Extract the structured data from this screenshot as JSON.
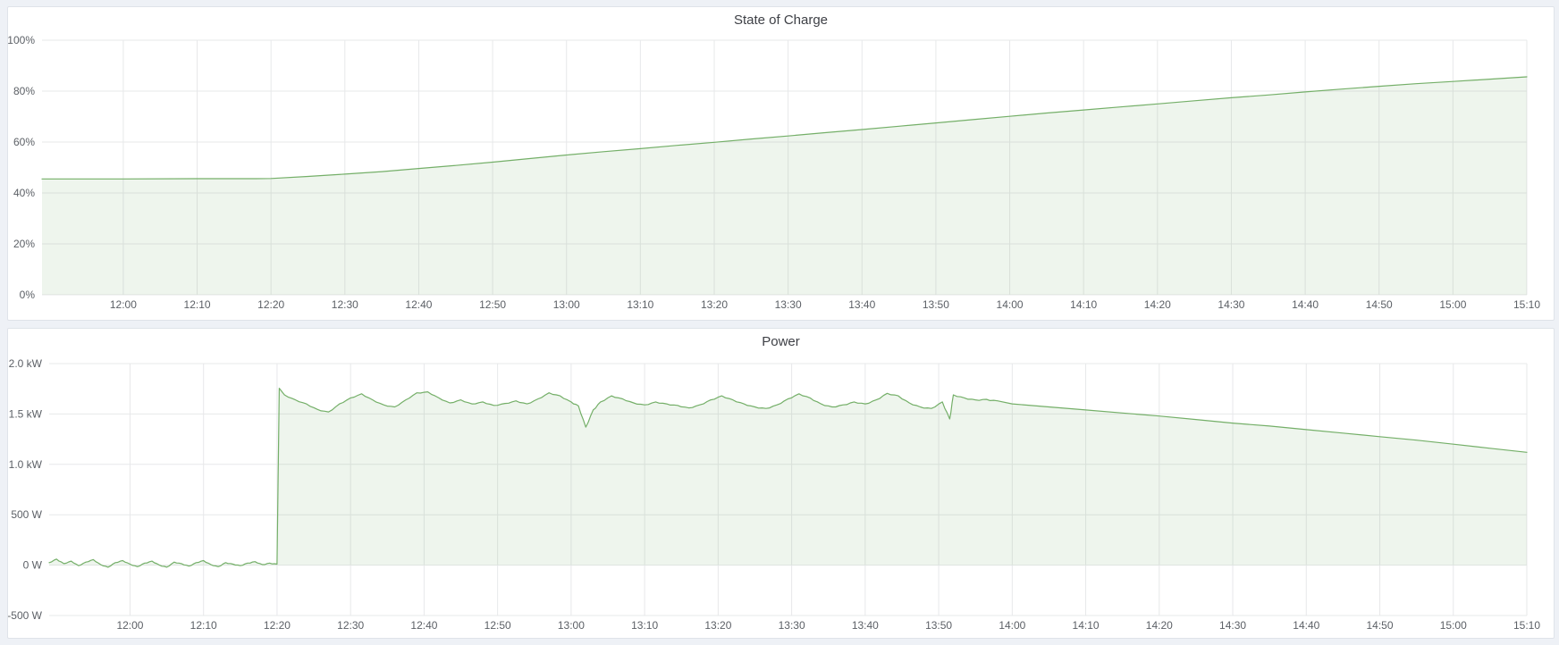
{
  "page": {
    "background": "#eef1f6",
    "panel_background": "#ffffff",
    "panel_border": "#dfe3e9",
    "gridline_color": "#e7e8ea",
    "tick_label_color": "#5c6066",
    "title_color": "#3e4046"
  },
  "panels": [
    {
      "title": "State of Charge"
    },
    {
      "title": "Power"
    }
  ],
  "chart_data": [
    {
      "type": "area",
      "title": "State of Charge",
      "xlabel": "time",
      "ylabel": "",
      "xlim": [
        709,
        910
      ],
      "ylim": [
        0,
        100
      ],
      "grid": true,
      "legend": "none",
      "line_color": "#74af68",
      "fill_color": "rgba(116,175,104,0.12)",
      "fill_base": 0,
      "y_ticks": [
        {
          "v": 0,
          "label": "0%"
        },
        {
          "v": 20,
          "label": "20%"
        },
        {
          "v": 40,
          "label": "40%"
        },
        {
          "v": 60,
          "label": "60%"
        },
        {
          "v": 80,
          "label": "80%"
        },
        {
          "v": 100,
          "label": "100%"
        }
      ],
      "x_ticks": [
        {
          "t": 720,
          "label": "12:00"
        },
        {
          "t": 730,
          "label": "12:10"
        },
        {
          "t": 740,
          "label": "12:20"
        },
        {
          "t": 750,
          "label": "12:30"
        },
        {
          "t": 760,
          "label": "12:40"
        },
        {
          "t": 770,
          "label": "12:50"
        },
        {
          "t": 780,
          "label": "13:00"
        },
        {
          "t": 790,
          "label": "13:10"
        },
        {
          "t": 800,
          "label": "13:20"
        },
        {
          "t": 810,
          "label": "13:30"
        },
        {
          "t": 820,
          "label": "13:40"
        },
        {
          "t": 830,
          "label": "13:50"
        },
        {
          "t": 840,
          "label": "14:00"
        },
        {
          "t": 850,
          "label": "14:10"
        },
        {
          "t": 860,
          "label": "14:20"
        },
        {
          "t": 870,
          "label": "14:30"
        },
        {
          "t": 880,
          "label": "14:40"
        },
        {
          "t": 890,
          "label": "14:50"
        },
        {
          "t": 900,
          "label": "15:00"
        },
        {
          "t": 910,
          "label": "15:10"
        }
      ],
      "points": [
        [
          709,
          45.5
        ],
        [
          720,
          45.5
        ],
        [
          730,
          45.6
        ],
        [
          738,
          45.6
        ],
        [
          740,
          45.7
        ],
        [
          745,
          46.5
        ],
        [
          750,
          47.4
        ],
        [
          755,
          48.4
        ],
        [
          760,
          49.6
        ],
        [
          765,
          50.8
        ],
        [
          770,
          52.1
        ],
        [
          775,
          53.5
        ],
        [
          780,
          54.9
        ],
        [
          785,
          56.2
        ],
        [
          790,
          57.4
        ],
        [
          795,
          58.7
        ],
        [
          800,
          59.9
        ],
        [
          805,
          61.2
        ],
        [
          810,
          62.4
        ],
        [
          815,
          63.7
        ],
        [
          820,
          64.9
        ],
        [
          825,
          66.2
        ],
        [
          830,
          67.5
        ],
        [
          835,
          68.8
        ],
        [
          840,
          70.1
        ],
        [
          845,
          71.4
        ],
        [
          850,
          72.6
        ],
        [
          855,
          73.8
        ],
        [
          860,
          75.0
        ],
        [
          865,
          76.2
        ],
        [
          870,
          77.4
        ],
        [
          875,
          78.5
        ],
        [
          880,
          79.7
        ],
        [
          885,
          80.8
        ],
        [
          890,
          81.9
        ],
        [
          895,
          82.9
        ],
        [
          900,
          83.8
        ],
        [
          905,
          84.7
        ],
        [
          910,
          85.6
        ]
      ],
      "noise": null
    },
    {
      "type": "area",
      "title": "Power",
      "xlabel": "time",
      "ylabel": "",
      "xlim": [
        709,
        910
      ],
      "ylim": [
        -500,
        2000
      ],
      "grid": true,
      "legend": "none",
      "line_color": "#74af68",
      "fill_color": "rgba(116,175,104,0.12)",
      "fill_base": 0,
      "y_ticks": [
        {
          "v": -500,
          "label": "-500 W"
        },
        {
          "v": 0,
          "label": "0 W"
        },
        {
          "v": 500,
          "label": "500 W"
        },
        {
          "v": 1000,
          "label": "1.0 kW"
        },
        {
          "v": 1500,
          "label": "1.5 kW"
        },
        {
          "v": 2000,
          "label": "2.0 kW"
        }
      ],
      "x_ticks": [
        {
          "t": 720,
          "label": "12:00"
        },
        {
          "t": 730,
          "label": "12:10"
        },
        {
          "t": 740,
          "label": "12:20"
        },
        {
          "t": 750,
          "label": "12:30"
        },
        {
          "t": 760,
          "label": "12:40"
        },
        {
          "t": 770,
          "label": "12:50"
        },
        {
          "t": 780,
          "label": "13:00"
        },
        {
          "t": 790,
          "label": "13:10"
        },
        {
          "t": 800,
          "label": "13:20"
        },
        {
          "t": 810,
          "label": "13:30"
        },
        {
          "t": 820,
          "label": "13:40"
        },
        {
          "t": 830,
          "label": "13:50"
        },
        {
          "t": 840,
          "label": "14:00"
        },
        {
          "t": 850,
          "label": "14:10"
        },
        {
          "t": 860,
          "label": "14:20"
        },
        {
          "t": 870,
          "label": "14:30"
        },
        {
          "t": 880,
          "label": "14:40"
        },
        {
          "t": 890,
          "label": "14:50"
        },
        {
          "t": 900,
          "label": "15:00"
        },
        {
          "t": 910,
          "label": "15:10"
        }
      ],
      "points": [
        [
          709,
          25
        ],
        [
          710,
          60
        ],
        [
          711,
          15
        ],
        [
          712,
          40
        ],
        [
          713,
          -5
        ],
        [
          714,
          30
        ],
        [
          715,
          55
        ],
        [
          716,
          5
        ],
        [
          717,
          -20
        ],
        [
          718,
          25
        ],
        [
          719,
          45
        ],
        [
          720,
          10
        ],
        [
          721,
          -15
        ],
        [
          722,
          20
        ],
        [
          723,
          40
        ],
        [
          724,
          0
        ],
        [
          725,
          -20
        ],
        [
          726,
          30
        ],
        [
          727,
          15
        ],
        [
          728,
          -10
        ],
        [
          729,
          25
        ],
        [
          730,
          45
        ],
        [
          731,
          5
        ],
        [
          732,
          -15
        ],
        [
          733,
          25
        ],
        [
          734,
          10
        ],
        [
          735,
          -5
        ],
        [
          736,
          20
        ],
        [
          737,
          35
        ],
        [
          738,
          5
        ],
        [
          739,
          20
        ],
        [
          740,
          10
        ],
        [
          740.3,
          1755
        ],
        [
          741,
          1690
        ],
        [
          742.5,
          1640
        ],
        [
          744,
          1600
        ],
        [
          745.5,
          1545
        ],
        [
          747,
          1520
        ],
        [
          748.5,
          1600
        ],
        [
          750,
          1660
        ],
        [
          751.5,
          1700
        ],
        [
          753,
          1640
        ],
        [
          754.5,
          1590
        ],
        [
          756,
          1570
        ],
        [
          757.5,
          1640
        ],
        [
          759,
          1710
        ],
        [
          760.5,
          1720
        ],
        [
          762,
          1660
        ],
        [
          763.5,
          1610
        ],
        [
          765,
          1640
        ],
        [
          766.5,
          1600
        ],
        [
          768,
          1620
        ],
        [
          769.5,
          1585
        ],
        [
          771,
          1605
        ],
        [
          772.5,
          1630
        ],
        [
          774,
          1600
        ],
        [
          775.5,
          1650
        ],
        [
          777,
          1710
        ],
        [
          778.5,
          1680
        ],
        [
          780,
          1620
        ],
        [
          781,
          1580
        ],
        [
          782,
          1370
        ],
        [
          783,
          1540
        ],
        [
          784,
          1620
        ],
        [
          785.5,
          1680
        ],
        [
          787,
          1650
        ],
        [
          788.5,
          1610
        ],
        [
          790,
          1590
        ],
        [
          791.5,
          1620
        ],
        [
          793,
          1600
        ],
        [
          794.5,
          1585
        ],
        [
          796,
          1560
        ],
        [
          797.5,
          1590
        ],
        [
          799,
          1640
        ],
        [
          800.5,
          1680
        ],
        [
          802,
          1640
        ],
        [
          803.5,
          1600
        ],
        [
          805,
          1570
        ],
        [
          806.5,
          1555
        ],
        [
          808,
          1590
        ],
        [
          809.5,
          1650
        ],
        [
          811,
          1700
        ],
        [
          812.5,
          1660
        ],
        [
          814,
          1600
        ],
        [
          815.5,
          1570
        ],
        [
          817,
          1590
        ],
        [
          818.5,
          1620
        ],
        [
          820,
          1600
        ],
        [
          821.5,
          1640
        ],
        [
          823,
          1705
        ],
        [
          824.5,
          1680
        ],
        [
          826,
          1610
        ],
        [
          827.5,
          1570
        ],
        [
          829,
          1555
        ],
        [
          830.5,
          1620
        ],
        [
          831.5,
          1450
        ],
        [
          832,
          1690
        ],
        [
          833.5,
          1660
        ],
        [
          835,
          1640
        ],
        [
          836.5,
          1645
        ],
        [
          838,
          1630
        ],
        [
          840,
          1600
        ],
        [
          845,
          1570
        ],
        [
          850,
          1540
        ],
        [
          855,
          1510
        ],
        [
          860,
          1480
        ],
        [
          865,
          1445
        ],
        [
          870,
          1410
        ],
        [
          875,
          1380
        ],
        [
          880,
          1345
        ],
        [
          885,
          1310
        ],
        [
          890,
          1275
        ],
        [
          895,
          1240
        ],
        [
          900,
          1200
        ],
        [
          905,
          1160
        ],
        [
          910,
          1120
        ]
      ],
      "noise": {
        "windows": [
          {
            "range": [
              709,
              740
            ],
            "amplitude": 12
          },
          {
            "range": [
              741,
              838
            ],
            "amplitude": 18
          }
        ]
      }
    }
  ]
}
